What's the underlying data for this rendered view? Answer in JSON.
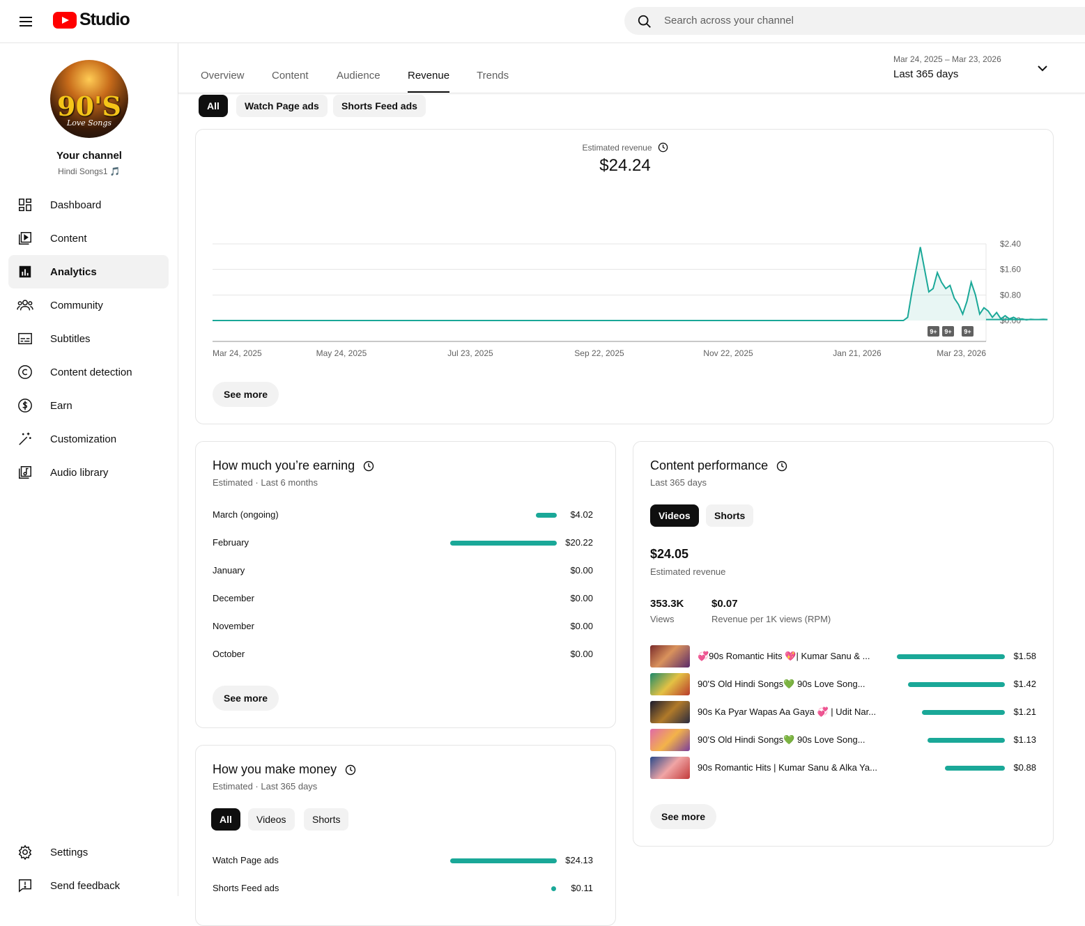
{
  "header": {
    "logo_text": "Studio",
    "search_placeholder": "Search across your channel"
  },
  "channel": {
    "name": "Your channel",
    "handle": "Hindi Songs1 🎵",
    "avatar_big": "90'S",
    "avatar_small": "Love Songs"
  },
  "sidebar": {
    "items": [
      {
        "label": "Dashboard",
        "icon": "dashboard-icon"
      },
      {
        "label": "Content",
        "icon": "content-icon"
      },
      {
        "label": "Analytics",
        "icon": "analytics-icon"
      },
      {
        "label": "Community",
        "icon": "community-icon"
      },
      {
        "label": "Subtitles",
        "icon": "subtitles-icon"
      },
      {
        "label": "Content detection",
        "icon": "copyright-icon"
      },
      {
        "label": "Earn",
        "icon": "dollar-icon"
      },
      {
        "label": "Customization",
        "icon": "magic-wand-icon"
      },
      {
        "label": "Audio library",
        "icon": "audio-library-icon"
      }
    ],
    "bottom": [
      {
        "label": "Settings",
        "icon": "gear-icon"
      },
      {
        "label": "Send feedback",
        "icon": "feedback-icon"
      }
    ]
  },
  "tabs": [
    "Overview",
    "Content",
    "Audience",
    "Revenue",
    "Trends"
  ],
  "active_tab": "Revenue",
  "date_range": {
    "range": "Mar 24, 2025 – Mar 23, 2026",
    "label": "Last 365 days"
  },
  "filter_chips": [
    "All",
    "Watch Page ads",
    "Shorts Feed ads"
  ],
  "revenue_card": {
    "label": "Estimated revenue",
    "total": "$24.24",
    "see_more": "See more",
    "badge": "9+"
  },
  "chart_data": {
    "type": "area",
    "ylabel_ticks": [
      "$0.00",
      "$0.80",
      "$1.60",
      "$2.40"
    ],
    "ylim": [
      0,
      2.4
    ],
    "x_tick_labels": [
      "Mar 24, 2025",
      "May 24, 2025",
      "Jul 23, 2025",
      "Sep 22, 2025",
      "Nov 22, 2025",
      "Jan 21, 2026",
      "Mar 23, 2026"
    ],
    "series": [
      {
        "values": [
          [
            0,
            0
          ],
          [
            326,
            0
          ],
          [
            328,
            0.1
          ],
          [
            330,
            0.9
          ],
          [
            332,
            1.6
          ],
          [
            334,
            2.3
          ],
          [
            336,
            1.6
          ],
          [
            338,
            0.9
          ],
          [
            340,
            1.0
          ],
          [
            342,
            1.5
          ],
          [
            344,
            1.2
          ],
          [
            346,
            1.0
          ],
          [
            348,
            1.1
          ],
          [
            350,
            0.7
          ],
          [
            352,
            0.5
          ],
          [
            354,
            0.2
          ],
          [
            356,
            0.6
          ],
          [
            358,
            1.2
          ],
          [
            360,
            0.8
          ],
          [
            362,
            0.2
          ],
          [
            364,
            0.4
          ],
          [
            366,
            0.3
          ],
          [
            368,
            0.1
          ],
          [
            370,
            0.25
          ],
          [
            372,
            0.05
          ],
          [
            374,
            0.15
          ],
          [
            376,
            0.05
          ],
          [
            378,
            0.1
          ],
          [
            380,
            0.03
          ],
          [
            382,
            0.05
          ],
          [
            384,
            0.02
          ],
          [
            386,
            0.04
          ],
          [
            388,
            0.03
          ],
          [
            390,
            0.03
          ],
          [
            392,
            0.04
          ],
          [
            394,
            0.03
          ],
          [
            365,
            0.03
          ]
        ]
      }
    ],
    "accent": "#1aa898"
  },
  "earning_card": {
    "title": "How much you’re earning",
    "subtitle": "Estimated · Last 6 months",
    "rows": [
      {
        "label": "March (ongoing)",
        "value": "$4.02",
        "amount": 4.02
      },
      {
        "label": "February",
        "value": "$20.22",
        "amount": 20.22
      },
      {
        "label": "January",
        "value": "$0.00",
        "amount": 0
      },
      {
        "label": "December",
        "value": "$0.00",
        "amount": 0
      },
      {
        "label": "November",
        "value": "$0.00",
        "amount": 0
      },
      {
        "label": "October",
        "value": "$0.00",
        "amount": 0
      }
    ],
    "see_more": "See more"
  },
  "money_card": {
    "title": "How you make money",
    "subtitle": "Estimated · Last 365 days",
    "chips": [
      "All",
      "Videos",
      "Shorts"
    ],
    "rows": [
      {
        "label": "Watch Page ads",
        "value": "$24.13",
        "amount": 24.13
      },
      {
        "label": "Shorts Feed ads",
        "value": "$0.11",
        "amount": 0.11
      }
    ]
  },
  "performance_card": {
    "title": "Content performance",
    "subtitle": "Last 365 days",
    "chips": [
      "Videos",
      "Shorts"
    ],
    "revenue": "$24.05",
    "revenue_label": "Estimated revenue",
    "views": "353.3K",
    "views_label": "Views",
    "rpm": "$0.07",
    "rpm_label": "Revenue per 1K views (RPM)",
    "videos": [
      {
        "title": "💞90s Romantic Hits 💖| Kumar Sanu & ...",
        "value": "$1.58",
        "amount": 1.58
      },
      {
        "title": "90'S Old Hindi Songs💚 90s Love Song...",
        "value": "$1.42",
        "amount": 1.42
      },
      {
        "title": "90s Ka Pyar Wapas Aa Gaya 💞 | Udit Nar...",
        "value": "$1.21",
        "amount": 1.21
      },
      {
        "title": "90'S Old Hindi Songs💚 90s Love Song...",
        "value": "$1.13",
        "amount": 1.13
      },
      {
        "title": "90s Romantic Hits | Kumar Sanu & Alka Ya...",
        "value": "$0.88",
        "amount": 0.88
      }
    ],
    "see_more": "See more"
  }
}
